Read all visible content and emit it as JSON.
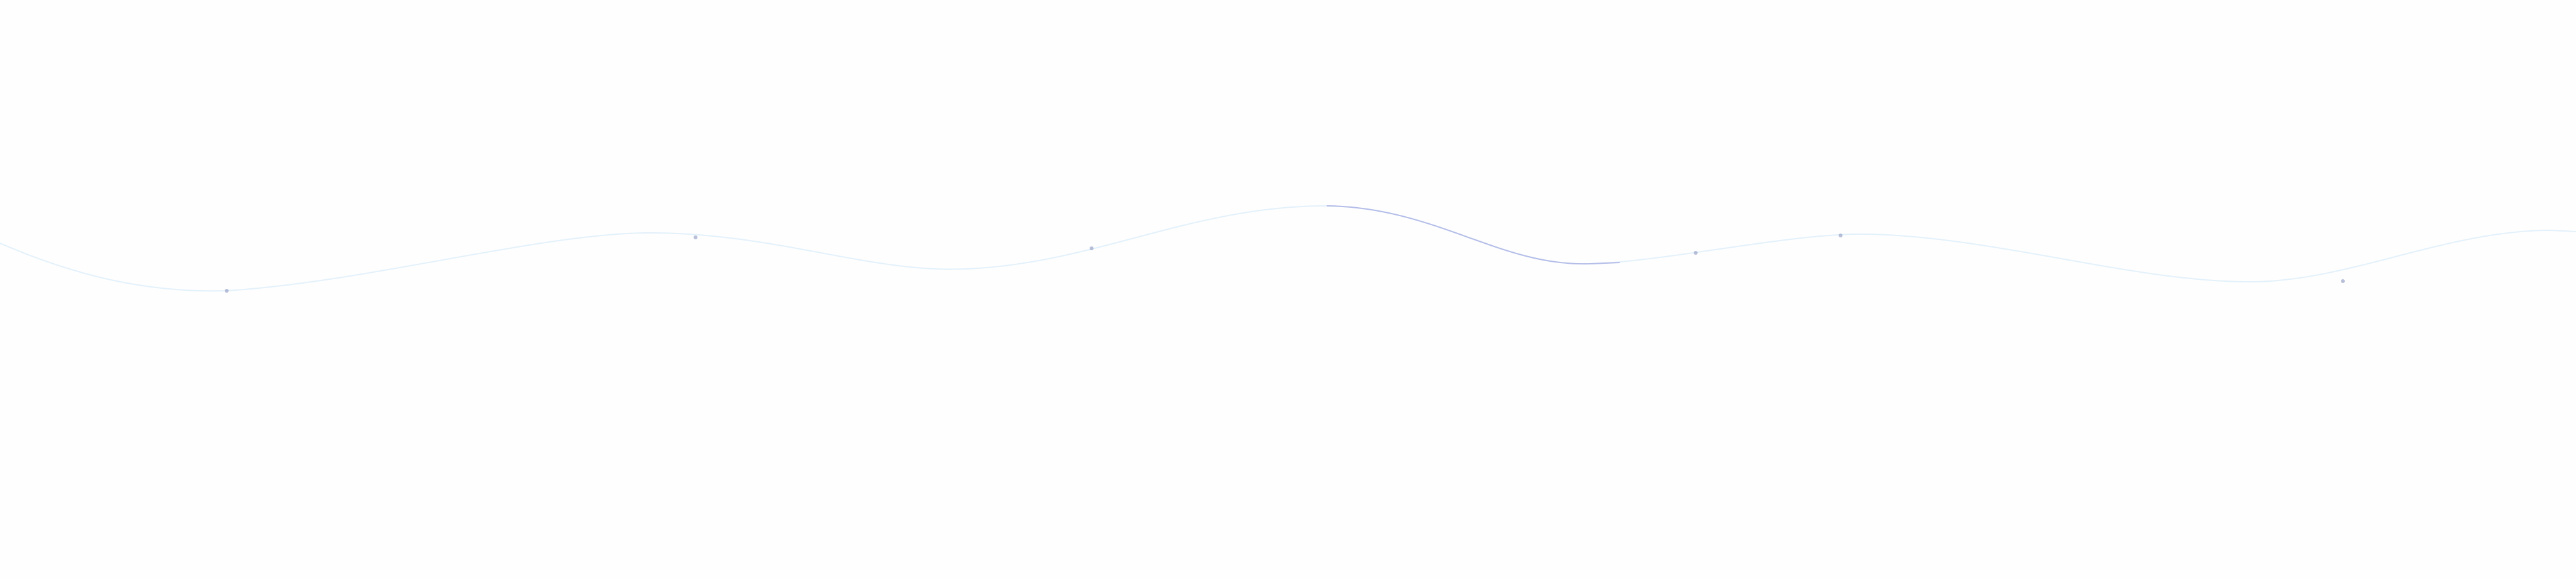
{
  "colors": {
    "background": "#fefefe",
    "line_faint": "#e3f1fb",
    "line_highlight": "#b4bde8",
    "marker": "#9aa4c8"
  },
  "decoration": {
    "type": "wave-line",
    "marker_count": 6
  }
}
